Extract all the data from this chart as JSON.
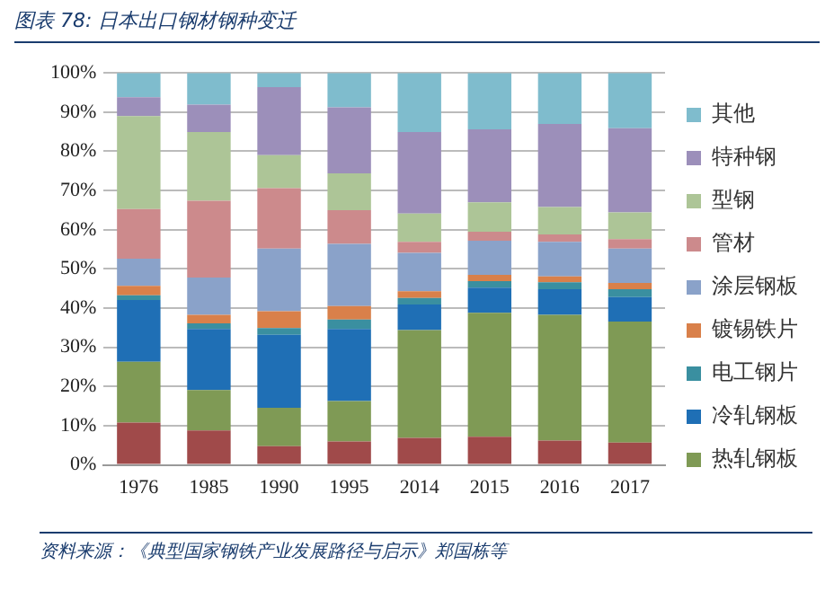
{
  "chart_data": {
    "type": "bar",
    "stacked": true,
    "title": "图表 78: 日本出口钢材钢种变迁",
    "categories": [
      "1976",
      "1985",
      "1990",
      "1995",
      "2014",
      "2015",
      "2016",
      "2017"
    ],
    "series": [
      {
        "color": "#a04a4a",
        "values": [
          10.8,
          8.8,
          4.8,
          6,
          6.9,
          7.2,
          6.2,
          5.7
        ]
      },
      {
        "name": "热轧钢板",
        "color": "#7f9a55",
        "values": [
          15.5,
          10.3,
          9.8,
          10.3,
          27.5,
          31.6,
          32.1,
          30.9
        ]
      },
      {
        "name": "冷轧钢板",
        "color": "#1f6fb5",
        "values": [
          15.8,
          15.6,
          18.6,
          18.4,
          6.5,
          6.4,
          6.5,
          6.2
        ]
      },
      {
        "name": "电工钢片",
        "color": "#3a8fa0",
        "values": [
          1.2,
          1.4,
          1.7,
          2.4,
          1.7,
          1.7,
          1.8,
          2
        ]
      },
      {
        "name": "镀锡铁片",
        "color": "#d9804a",
        "values": [
          2.4,
          2.2,
          4.3,
          3.4,
          1.7,
          1.6,
          1.5,
          1.6
        ]
      },
      {
        "name": "涂层钢板",
        "color": "#8aa2c9",
        "values": [
          6.9,
          9.5,
          16,
          15.9,
          9.8,
          8.7,
          8.8,
          8.8
        ]
      },
      {
        "name": "管材",
        "color": "#cc8a8c",
        "values": [
          12.7,
          19.6,
          15.4,
          8.6,
          2.8,
          2.3,
          1.9,
          2.4
        ]
      },
      {
        "name": "型钢",
        "color": "#adc597",
        "values": [
          23.7,
          17.5,
          8.4,
          9.4,
          7.2,
          7.5,
          7,
          6.8
        ]
      },
      {
        "name": "特种钢",
        "color": "#9c8fba",
        "values": [
          4.8,
          7,
          17.4,
          16.8,
          20.8,
          18.6,
          21.2,
          21.5
        ]
      },
      {
        "name": "其他",
        "color": "#7fbccd",
        "values": [
          6.2,
          8.1,
          3.6,
          8.8,
          15.1,
          14.4,
          13,
          14.1
        ]
      }
    ],
    "ylim": [
      0,
      100
    ],
    "yticks": [
      {
        "value": 0,
        "label": "0%"
      },
      {
        "value": 10,
        "label": "10%"
      },
      {
        "value": 20,
        "label": "20%"
      },
      {
        "value": 30,
        "label": "30%"
      },
      {
        "value": 40,
        "label": "40%"
      },
      {
        "value": 50,
        "label": "50%"
      },
      {
        "value": 60,
        "label": "60%"
      },
      {
        "value": 70,
        "label": "70%"
      },
      {
        "value": 80,
        "label": "80%"
      },
      {
        "value": 90,
        "label": "90%"
      },
      {
        "value": 100,
        "label": "100%"
      }
    ],
    "grid": "y",
    "legend": "right",
    "annotations": [
      "资料来源：《典型国家钢铁产业发展路径与启示》郑国栋等"
    ]
  }
}
